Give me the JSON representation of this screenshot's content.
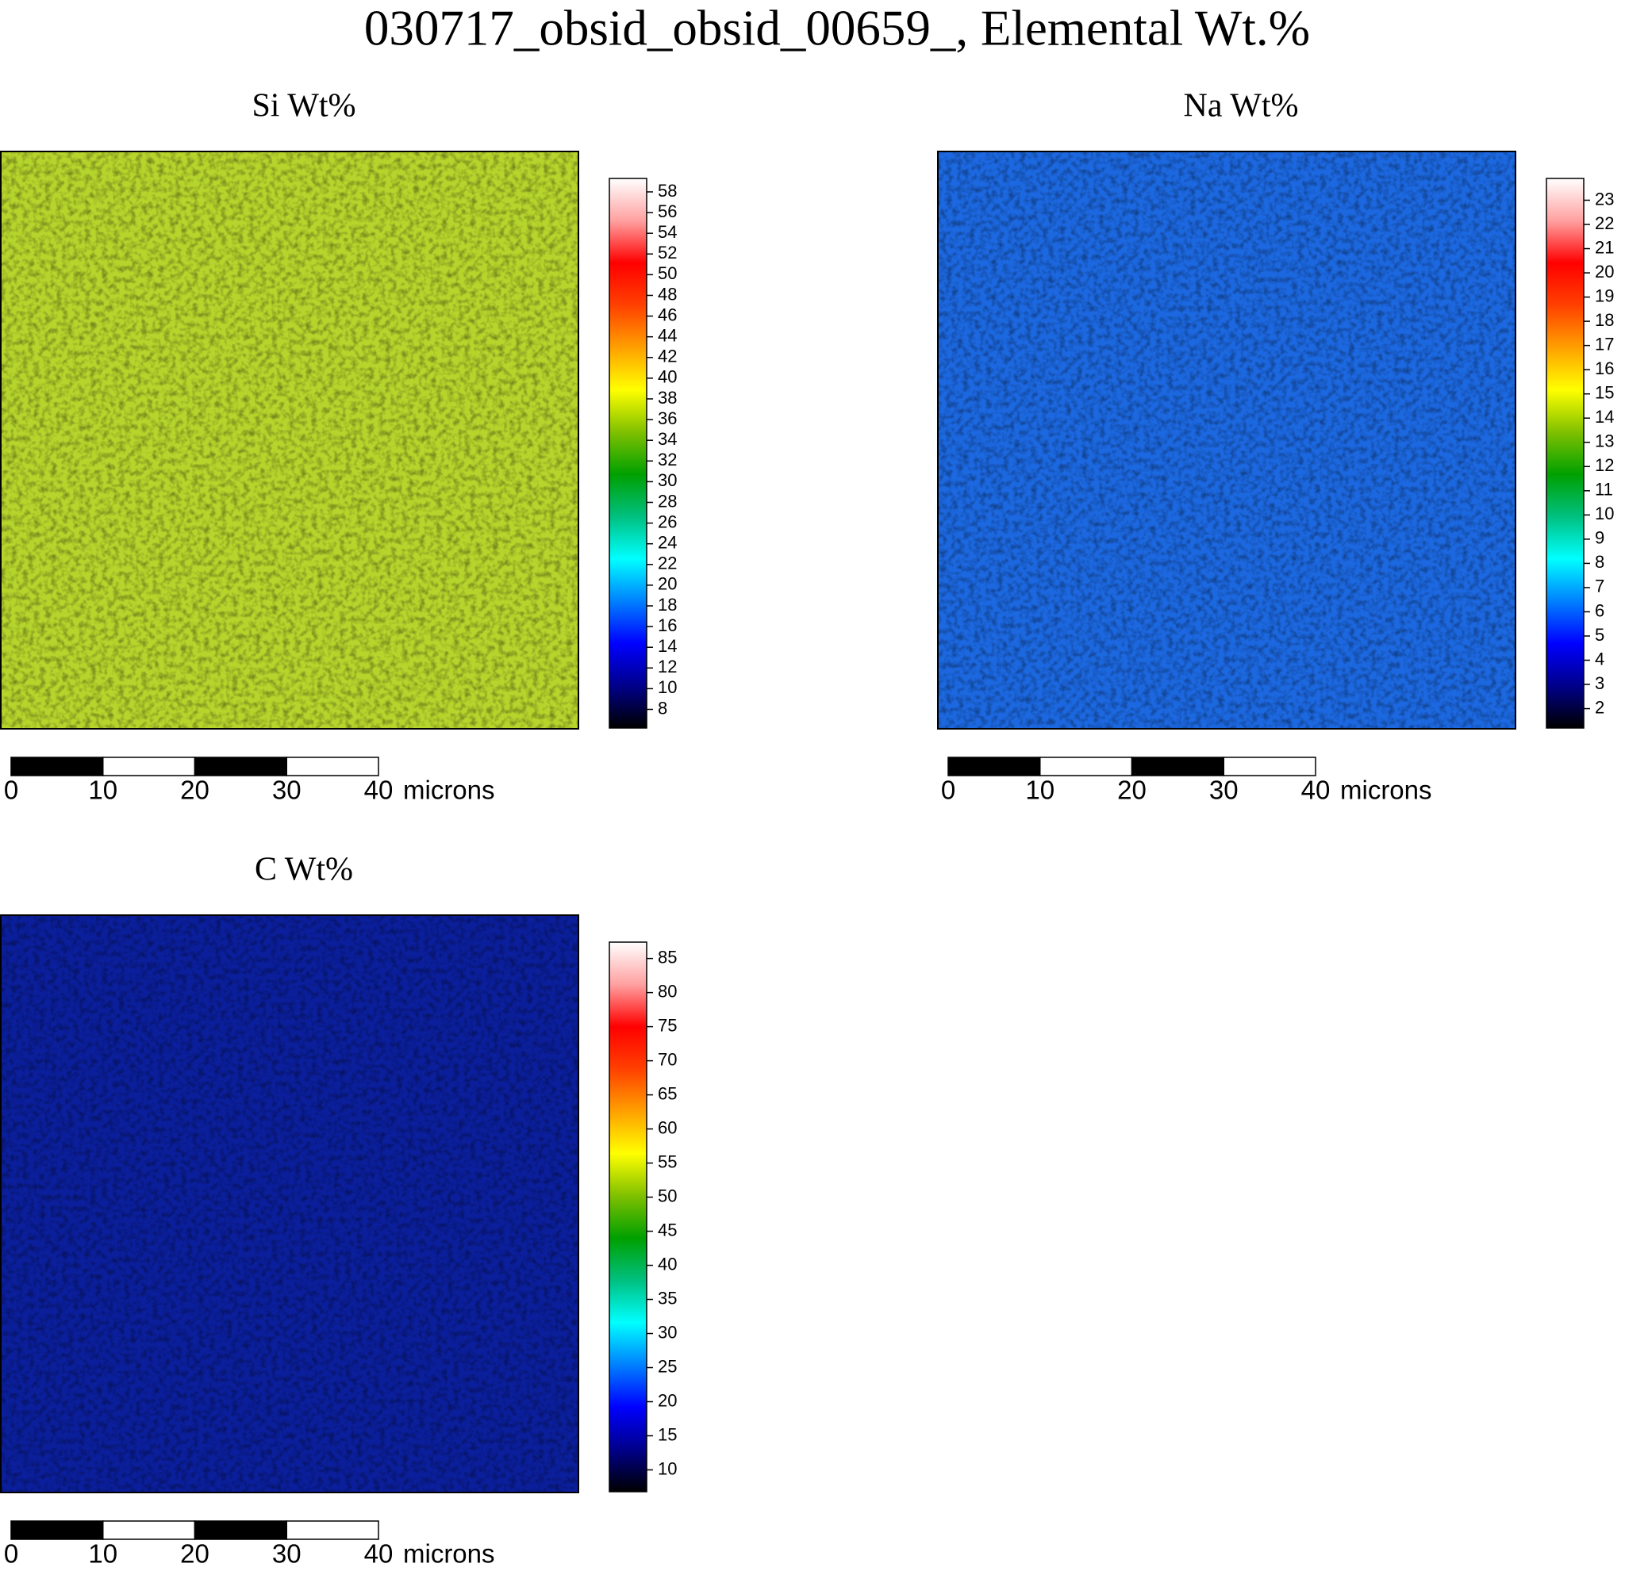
{
  "title": "030717_obsid_obsid_00659_, Elemental Wt.%",
  "chart_data": [
    {
      "type": "heatmap",
      "title": "Si Wt%",
      "map_color": "#b6d52c",
      "colormap": [
        "#000000",
        "#00008b",
        "#0000ff",
        "#0080ff",
        "#00ffff",
        "#00c080",
        "#00a000",
        "#80c000",
        "#ffff00",
        "#ffa000",
        "#ff4000",
        "#ff0000",
        "#ffa0a0",
        "#ffffff"
      ],
      "ylim": [
        6.2,
        59.3
      ],
      "yticks": [
        8,
        10,
        12,
        14,
        16,
        18,
        20,
        22,
        24,
        26,
        28,
        30,
        32,
        34,
        36,
        38,
        40,
        42,
        44,
        46,
        48,
        50,
        52,
        54,
        56,
        58
      ],
      "xlim": [
        0,
        40
      ],
      "xticks": [
        0,
        10,
        20,
        30,
        40
      ],
      "xlabel": "microns"
    },
    {
      "type": "heatmap",
      "title": "Na Wt%",
      "map_color": "#1c68e0",
      "colormap": [
        "#000000",
        "#00008b",
        "#0000ff",
        "#0080ff",
        "#00ffff",
        "#00c080",
        "#00a000",
        "#80c000",
        "#ffff00",
        "#ffa000",
        "#ff4000",
        "#ff0000",
        "#ffa0a0",
        "#ffffff"
      ],
      "ylim": [
        1.2,
        23.9
      ],
      "yticks": [
        2,
        3,
        4,
        5,
        6,
        7,
        8,
        9,
        10,
        11,
        12,
        13,
        14,
        15,
        16,
        17,
        18,
        19,
        20,
        21,
        22,
        23
      ],
      "xlim": [
        0,
        40
      ],
      "xticks": [
        0,
        10,
        20,
        30,
        40
      ],
      "xlabel": "microns"
    },
    {
      "type": "heatmap",
      "title": "C Wt%",
      "map_color": "#0b1f9c",
      "colormap": [
        "#000000",
        "#00008b",
        "#0000ff",
        "#0080ff",
        "#00ffff",
        "#00c080",
        "#00a000",
        "#80c000",
        "#ffff00",
        "#ffa000",
        "#ff4000",
        "#ff0000",
        "#ffa0a0",
        "#ffffff"
      ],
      "ylim": [
        6.8,
        87.4
      ],
      "yticks": [
        10,
        15,
        20,
        25,
        30,
        35,
        40,
        45,
        50,
        55,
        60,
        65,
        70,
        75,
        80,
        85
      ],
      "xlim": [
        0,
        40
      ],
      "xticks": [
        0,
        10,
        20,
        30,
        40
      ],
      "xlabel": "microns"
    }
  ]
}
